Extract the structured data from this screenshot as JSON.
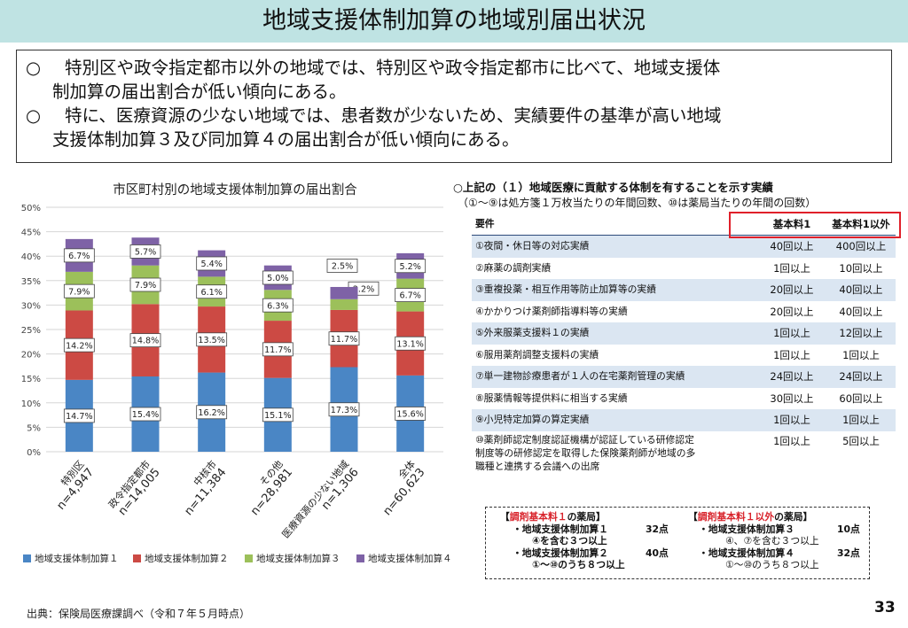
{
  "header": {
    "title": "地域支援体制加算の地域別届出状況"
  },
  "summary": {
    "marker": "○",
    "items": [
      {
        "line1": "特別区や政令指定都市以外の地域では、特別区や政令指定都市に比べて、地域支援体",
        "line2": "制加算の届出割合が低い傾向にある。"
      },
      {
        "line1": "特に、医療資源の少ない地域では、患者数が少ないため、実績要件の基準が高い地域",
        "line2": "支援体制加算３及び同加算４の届出割合が低い傾向にある。"
      }
    ]
  },
  "chart_data": {
    "type": "bar",
    "stacked": true,
    "title": "市区町村別の地域支援体制加算の届出割合",
    "categories": [
      {
        "name": "特別区",
        "n": "n=4,947"
      },
      {
        "name": "政令指定都市",
        "n": "n=14,005"
      },
      {
        "name": "中核市",
        "n": "n=11,384"
      },
      {
        "name": "その他",
        "n": "n=28,981"
      },
      {
        "name": "医療資源の少ない地域",
        "n": "n=1,306"
      },
      {
        "name": "全体",
        "n": "n=60,623"
      }
    ],
    "series": [
      {
        "name": "地域支援体制加算１",
        "color": "#4a86c5",
        "values": [
          14.7,
          15.4,
          16.2,
          15.1,
          17.3,
          15.6
        ],
        "labels": [
          "14.7%",
          "15.4%",
          "16.2%",
          "15.1%",
          "17.3%",
          "15.6%"
        ]
      },
      {
        "name": "地域支援体制加算２",
        "color": "#cc4a44",
        "values": [
          14.2,
          14.8,
          13.5,
          11.7,
          11.7,
          13.1
        ],
        "labels": [
          "14.2%",
          "14.8%",
          "13.5%",
          "11.7%",
          "11.7%",
          "13.1%"
        ]
      },
      {
        "name": "地域支援体制加算３",
        "color": "#9cc05a",
        "values": [
          7.9,
          7.9,
          6.1,
          6.3,
          2.2,
          6.7
        ],
        "labels": [
          "7.9%",
          "7.9%",
          "6.1%",
          "6.3%",
          "2.2%",
          "6.7%"
        ]
      },
      {
        "name": "地域支援体制加算４",
        "color": "#7e62a6",
        "values": [
          6.7,
          5.7,
          5.4,
          5.0,
          2.5,
          5.2
        ],
        "labels": [
          "6.7%",
          "5.7%",
          "5.4%",
          "5.0%",
          "2.5%",
          "5.2%"
        ]
      }
    ],
    "ylim": [
      0,
      50
    ],
    "yticks": [
      "0%",
      "5%",
      "10%",
      "15%",
      "20%",
      "25%",
      "30%",
      "35%",
      "40%",
      "45%",
      "50%"
    ],
    "grid": true,
    "legend": "bottom"
  },
  "requirements": {
    "heading": "○上記の（１）地域医療に貢献する体制を有することを示す実績",
    "subheading": "（①～⑨は処方箋１万枚当たりの年間回数、⑩は薬局当たりの年間の回数）",
    "header": {
      "label": "要件",
      "col1": "基本料1",
      "col2": "基本料1以外"
    },
    "rows": [
      {
        "label": "①夜間・休日等の対応実績",
        "col1": "40回以上",
        "col2": "400回以上"
      },
      {
        "label": "②麻薬の調剤実績",
        "col1": "1回以上",
        "col2": "10回以上"
      },
      {
        "label": "③重複投薬・相互作用等防止加算等の実績",
        "col1": "20回以上",
        "col2": "40回以上"
      },
      {
        "label": "④かかりつけ薬剤師指導料等の実績",
        "col1": "20回以上",
        "col2": "40回以上"
      },
      {
        "label": "⑤外来服薬支援料１の実績",
        "col1": "1回以上",
        "col2": "12回以上"
      },
      {
        "label": "⑥服用薬剤調整支援料の実績",
        "col1": "1回以上",
        "col2": "1回以上"
      },
      {
        "label": "⑦単一建物診療患者が１人の在宅薬剤管理の実績",
        "col1": "24回以上",
        "col2": "24回以上"
      },
      {
        "label": "⑧服薬情報等提供料に相当する実績",
        "col1": "30回以上",
        "col2": "60回以上"
      },
      {
        "label": "⑨小児特定加算の算定実績",
        "col1": "1回以上",
        "col2": "1回以上"
      },
      {
        "label_lines": [
          "⑩薬剤師認定制度認証機構が認証している研修認定",
          "制度等の研修認定を取得した保険薬剤師が地域の多",
          "職種と連携する会議への出席"
        ],
        "col1": "1回以上",
        "col2": "5回以上"
      }
    ]
  },
  "points": {
    "left_header_pre": "【",
    "left_header_red": "調剤基本料１",
    "left_header_post": "の薬局】",
    "left_item1": "・地域支援体制加算１",
    "left_item1_pts": "32点",
    "left_item1_sub": "④を含む３つ以上",
    "left_item2": "・地域支援体制加算２",
    "left_item2_pts": "40点",
    "left_item2_sub": "①～⑩のうち８つ以上",
    "right_header_pre": "【",
    "right_header_red": "調剤基本料１以外",
    "right_header_post": "の薬局】",
    "right_item1": "・地域支援体制加算３",
    "right_item1_pts": "10点",
    "right_item1_sub": "④、⑦を含む３つ以上",
    "right_item2": "・地域支援体制加算４",
    "right_item2_pts": "32点",
    "right_item2_sub": "①～⑩のうち８つ以上"
  },
  "footer": {
    "source": "出典：保険局医療課調べ（令和７年５月時点）",
    "page_number": "33"
  }
}
